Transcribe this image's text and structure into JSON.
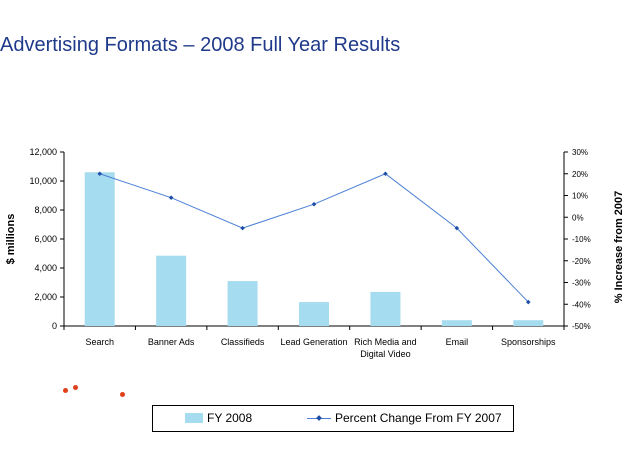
{
  "chart_data": {
    "type": "bar",
    "title": "Advertising Formats – 2008 Full Year Results",
    "categories": [
      "Search",
      "Banner Ads",
      "Classifieds",
      "Lead Generation",
      "Rich Media and Digital Video",
      "Email",
      "Sponsorships"
    ],
    "series": [
      {
        "name": "FY 2008",
        "type": "bar",
        "axis": "left",
        "color": "#a6dcef",
        "values": [
          10600,
          4850,
          3100,
          1650,
          2350,
          400,
          400
        ]
      },
      {
        "name": "Percent Change From FY 2007",
        "type": "line",
        "axis": "right",
        "color": "#4a7fd4",
        "values": [
          20,
          9,
          -5,
          6,
          20,
          -5,
          -39
        ]
      }
    ],
    "ylabel": "$ millions",
    "ylim": [
      0,
      12000
    ],
    "yticks": [
      "0",
      "2,000",
      "4,000",
      "6,000",
      "8,000",
      "10,000",
      "12,000"
    ],
    "ylabel_right": "% Increase from 2007",
    "ylim_right": [
      -50,
      30
    ],
    "yticks_right": [
      "-50%",
      "-40%",
      "-30%",
      "-20%",
      "-10%",
      "0%",
      "10%",
      "20%",
      "30%"
    ],
    "legend_position": "bottom",
    "grid": false
  }
}
